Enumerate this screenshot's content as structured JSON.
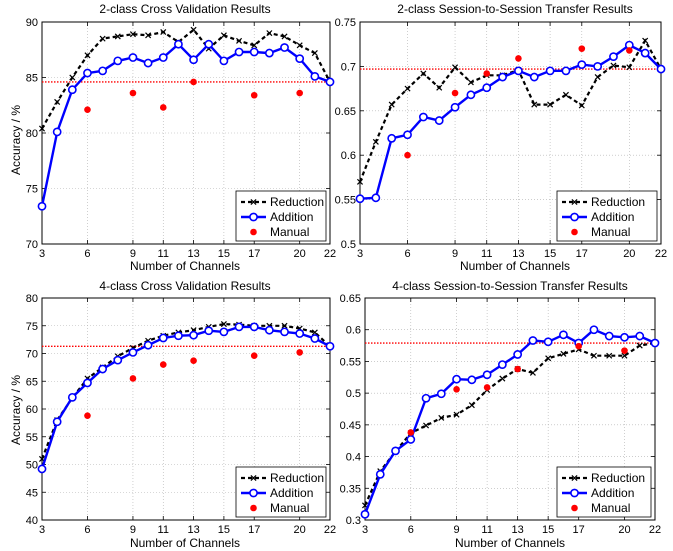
{
  "chart_data": [
    {
      "type": "line",
      "title": "2-class Cross Validation Results",
      "xlabel": "Number of Channels",
      "ylabel": "Accuracy / %",
      "xlim": [
        3,
        22
      ],
      "ylim": [
        70,
        90
      ],
      "xticks": [
        3,
        6,
        9,
        11,
        13,
        15,
        17,
        20,
        22
      ],
      "yticks": [
        70,
        75,
        80,
        85,
        90
      ],
      "grid": true,
      "legend_position": "bottom-right",
      "reference_line": 84.6,
      "series": [
        {
          "name": "Reduction",
          "style": "dashed-x",
          "color": "#000000",
          "x": [
            3,
            4,
            5,
            6,
            7,
            8,
            9,
            10,
            11,
            12,
            13,
            14,
            15,
            16,
            17,
            18,
            19,
            20,
            21,
            22
          ],
          "y": [
            80.4,
            82.8,
            85.0,
            87.0,
            88.5,
            88.7,
            88.9,
            88.8,
            89.1,
            88.2,
            89.3,
            87.6,
            88.8,
            88.3,
            87.9,
            89.0,
            88.7,
            87.9,
            87.2,
            84.6
          ]
        },
        {
          "name": "Addition",
          "style": "solid-o",
          "color": "#0000ff",
          "x": [
            3,
            4,
            5,
            6,
            7,
            8,
            9,
            10,
            11,
            12,
            13,
            14,
            15,
            16,
            17,
            18,
            19,
            20,
            21,
            22
          ],
          "y": [
            73.4,
            80.1,
            83.9,
            85.4,
            85.6,
            86.5,
            86.8,
            86.3,
            86.8,
            88.0,
            86.6,
            88.0,
            86.5,
            87.3,
            87.3,
            87.2,
            87.7,
            86.7,
            85.1,
            84.6
          ]
        },
        {
          "name": "Manual",
          "style": "dot",
          "color": "#ff0000",
          "x": [
            6,
            9,
            11,
            13,
            17,
            20
          ],
          "y": [
            82.1,
            83.6,
            82.3,
            84.6,
            83.4,
            83.6
          ]
        }
      ]
    },
    {
      "type": "line",
      "title": "2-class Session-to-Session Transfer Results",
      "xlabel": "Number of Channels",
      "ylabel": "",
      "xlim": [
        3,
        22
      ],
      "ylim": [
        0.5,
        0.75
      ],
      "xticks": [
        3,
        6,
        9,
        11,
        13,
        15,
        17,
        20,
        22
      ],
      "yticks": [
        0.5,
        0.55,
        0.6,
        0.65,
        0.7,
        0.75
      ],
      "ytick_labels": [
        "0.5",
        "0.55",
        "0.6",
        "0.65",
        "0.7",
        "0.75"
      ],
      "grid": true,
      "legend_position": "bottom-right",
      "reference_line": 0.697,
      "series": [
        {
          "name": "Reduction",
          "style": "dashed-x",
          "color": "#000000",
          "x": [
            3,
            4,
            5,
            6,
            7,
            8,
            9,
            10,
            11,
            12,
            13,
            14,
            15,
            16,
            17,
            18,
            19,
            20,
            21,
            22
          ],
          "y": [
            0.57,
            0.615,
            0.657,
            0.675,
            0.692,
            0.676,
            0.699,
            0.682,
            0.69,
            0.69,
            0.696,
            0.657,
            0.657,
            0.668,
            0.656,
            0.688,
            0.701,
            0.699,
            0.729,
            0.697
          ]
        },
        {
          "name": "Addition",
          "style": "solid-o",
          "color": "#0000ff",
          "x": [
            3,
            4,
            5,
            6,
            7,
            8,
            9,
            10,
            11,
            12,
            13,
            14,
            15,
            16,
            17,
            18,
            19,
            20,
            21,
            22
          ],
          "y": [
            0.551,
            0.552,
            0.619,
            0.623,
            0.643,
            0.639,
            0.654,
            0.668,
            0.676,
            0.688,
            0.695,
            0.688,
            0.695,
            0.695,
            0.702,
            0.7,
            0.711,
            0.724,
            0.715,
            0.697
          ]
        },
        {
          "name": "Manual",
          "style": "dot",
          "color": "#ff0000",
          "x": [
            6,
            9,
            11,
            13,
            17,
            20
          ],
          "y": [
            0.6,
            0.67,
            0.692,
            0.709,
            0.72,
            0.718
          ]
        }
      ]
    },
    {
      "type": "line",
      "title": "4-class Cross Validation Results",
      "xlabel": "Number of Channels",
      "ylabel": "Accuracy / %",
      "xlim": [
        3,
        22
      ],
      "ylim": [
        40,
        80
      ],
      "xticks": [
        3,
        6,
        9,
        11,
        13,
        15,
        17,
        20,
        22
      ],
      "yticks": [
        40,
        45,
        50,
        55,
        60,
        65,
        70,
        75,
        80
      ],
      "grid": true,
      "legend_position": "bottom-right",
      "reference_line": 71.3,
      "series": [
        {
          "name": "Reduction",
          "style": "dashed-x",
          "color": "#000000",
          "x": [
            3,
            4,
            5,
            6,
            7,
            8,
            9,
            10,
            11,
            12,
            13,
            14,
            15,
            16,
            17,
            18,
            19,
            20,
            21,
            22
          ],
          "y": [
            51.0,
            58.0,
            62.0,
            65.5,
            67.5,
            69.5,
            71.0,
            72.3,
            73.2,
            73.8,
            74.2,
            74.8,
            75.3,
            75.2,
            75.0,
            75.0,
            75.0,
            74.5,
            73.8,
            71.3
          ]
        },
        {
          "name": "Addition",
          "style": "solid-o",
          "color": "#0000ff",
          "x": [
            3,
            4,
            5,
            6,
            7,
            8,
            9,
            10,
            11,
            12,
            13,
            14,
            15,
            16,
            17,
            18,
            19,
            20,
            21,
            22
          ],
          "y": [
            49.2,
            57.7,
            62.1,
            64.7,
            67.2,
            68.8,
            70.2,
            71.5,
            72.8,
            73.2,
            73.3,
            74.1,
            73.9,
            74.8,
            74.8,
            74.2,
            73.9,
            73.6,
            72.7,
            71.3
          ]
        },
        {
          "name": "Manual",
          "style": "dot",
          "color": "#ff0000",
          "x": [
            6,
            9,
            11,
            13,
            17,
            20
          ],
          "y": [
            58.8,
            65.5,
            68.0,
            68.7,
            69.6,
            70.2
          ]
        }
      ]
    },
    {
      "type": "line",
      "title": "4-class Session-to-Session Transfer Results",
      "xlabel": "Number of Channels",
      "ylabel": "",
      "xlim": [
        3,
        22
      ],
      "ylim": [
        0.3,
        0.65
      ],
      "xticks": [
        3,
        6,
        9,
        11,
        13,
        15,
        17,
        20,
        22
      ],
      "yticks": [
        0.3,
        0.35,
        0.4,
        0.45,
        0.5,
        0.55,
        0.6,
        0.65
      ],
      "ytick_labels": [
        "0.3",
        "0.35",
        "0.4",
        "0.45",
        "0.5",
        "0.55",
        "0.6",
        "0.65"
      ],
      "grid": true,
      "legend_position": "bottom-right",
      "reference_line": 0.579,
      "series": [
        {
          "name": "Reduction",
          "style": "dashed-x",
          "color": "#000000",
          "x": [
            3,
            4,
            5,
            6,
            7,
            8,
            9,
            10,
            11,
            12,
            13,
            14,
            15,
            16,
            17,
            18,
            19,
            20,
            21,
            22
          ],
          "y": [
            0.323,
            0.377,
            0.408,
            0.437,
            0.449,
            0.461,
            0.466,
            0.481,
            0.505,
            0.523,
            0.538,
            0.532,
            0.555,
            0.562,
            0.569,
            0.559,
            0.559,
            0.559,
            0.575,
            0.579
          ]
        },
        {
          "name": "Addition",
          "style": "solid-o",
          "color": "#0000ff",
          "x": [
            3,
            4,
            5,
            6,
            7,
            8,
            9,
            10,
            11,
            12,
            13,
            14,
            15,
            16,
            17,
            18,
            19,
            20,
            21,
            22
          ],
          "y": [
            0.309,
            0.372,
            0.409,
            0.427,
            0.492,
            0.499,
            0.522,
            0.521,
            0.529,
            0.545,
            0.561,
            0.583,
            0.581,
            0.592,
            0.579,
            0.6,
            0.59,
            0.588,
            0.59,
            0.579
          ]
        },
        {
          "name": "Manual",
          "style": "dot",
          "color": "#ff0000",
          "x": [
            6,
            9,
            11,
            13,
            17,
            20
          ],
          "y": [
            0.438,
            0.506,
            0.509,
            0.538,
            0.574,
            0.567
          ]
        }
      ]
    }
  ]
}
